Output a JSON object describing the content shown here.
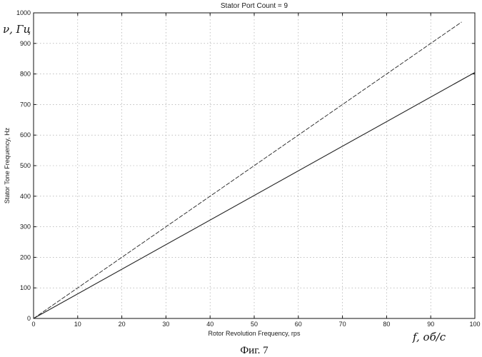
{
  "chart_data": {
    "type": "line",
    "title": "Stator Port Count = 9",
    "xlabel": "Rotor Revolution Frequency, rps",
    "ylabel": "Stator Tone Frequency, Hz",
    "xlim": [
      0,
      100
    ],
    "ylim": [
      0,
      1000
    ],
    "xticks": [
      0,
      10,
      20,
      30,
      40,
      50,
      60,
      70,
      80,
      90,
      100
    ],
    "yticks": [
      0,
      100,
      200,
      300,
      400,
      500,
      600,
      700,
      800,
      900,
      1000
    ],
    "grid": true,
    "series": [
      {
        "x": [
          0,
          100
        ],
        "y": [
          0,
          1000
        ],
        "line_style": "dashed",
        "extends_to_x": 97
      },
      {
        "x": [
          0,
          100
        ],
        "y": [
          0,
          805
        ],
        "line_style": "solid"
      }
    ],
    "colors": {
      "line": "#222222",
      "grid": "#9a9a9a",
      "axes": "#111111"
    }
  },
  "annotations": {
    "y_handwritten": "ν, Гц",
    "x_handwritten": "f, об/с",
    "figure_caption": "Фиг. 7"
  }
}
